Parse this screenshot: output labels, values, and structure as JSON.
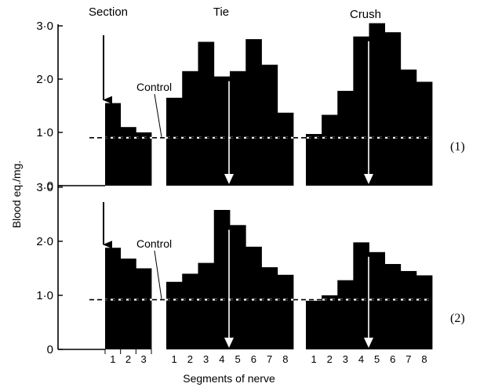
{
  "chart_data": {
    "type": "bar",
    "ylabel": "Blood eq./mg.",
    "xlabel": "Segments of nerve",
    "ylim": [
      0,
      3.0
    ],
    "yticks": [
      "0",
      "1·0",
      "2·0",
      "3·0"
    ],
    "groups": [
      "Section",
      "Tie",
      "Crush"
    ],
    "control_label": "Control",
    "panels": [
      {
        "id": "(1)",
        "control": 0.9,
        "series": [
          {
            "group": "Section",
            "segments": [
              "1",
              "2",
              "3"
            ],
            "values": [
              1.55,
              1.1,
              1.0
            ]
          },
          {
            "group": "Tie",
            "segments": [
              "1",
              "2",
              "3",
              "4",
              "5",
              "6",
              "7",
              "8"
            ],
            "values": [
              1.65,
              2.15,
              2.7,
              2.05,
              2.15,
              2.75,
              2.27,
              1.37
            ]
          },
          {
            "group": "Crush",
            "segments": [
              "1",
              "2",
              "3",
              "4",
              "5",
              "6",
              "7",
              "8"
            ],
            "values": [
              0.97,
              1.33,
              1.78,
              2.8,
              3.05,
              2.88,
              2.18,
              1.95
            ]
          }
        ]
      },
      {
        "id": "(2)",
        "control": 0.92,
        "series": [
          {
            "group": "Section",
            "segments": [
              "1",
              "2",
              "3"
            ],
            "values": [
              1.88,
              1.68,
              1.5
            ]
          },
          {
            "group": "Tie",
            "segments": [
              "1",
              "2",
              "3",
              "4",
              "5",
              "6",
              "7",
              "8"
            ],
            "values": [
              1.25,
              1.4,
              1.6,
              2.58,
              2.3,
              1.9,
              1.52,
              1.38
            ]
          },
          {
            "group": "Crush",
            "segments": [
              "1",
              "2",
              "3",
              "4",
              "5",
              "6",
              "7",
              "8"
            ],
            "values": [
              0.9,
              1.0,
              1.28,
              1.98,
              1.8,
              1.58,
              1.45,
              1.37
            ]
          }
        ]
      }
    ],
    "segment_labels": {
      "Section": [
        "1",
        "2",
        "3"
      ],
      "Tie": [
        "1",
        "2",
        "3",
        "4",
        "5",
        "6",
        "7",
        "8"
      ],
      "Crush": [
        "1",
        "2",
        "3",
        "4",
        "5",
        "6",
        "7",
        "8"
      ]
    }
  }
}
